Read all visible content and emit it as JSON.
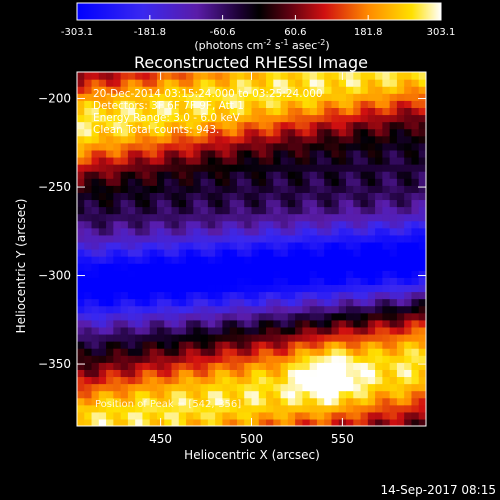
{
  "chart_data": {
    "type": "heatmap",
    "title": "Reconstructed RHESSI Image",
    "xlabel": "Heliocentric X (arcsec)",
    "ylabel": "Heliocentric Y (arcsec)",
    "xlim": [
      404,
      596
    ],
    "ylim": [
      -385,
      -185
    ],
    "x_ticks": [
      450,
      500,
      550
    ],
    "y_ticks": [
      -200,
      -250,
      -300,
      -350
    ],
    "colorbar": {
      "range": [
        -303.1,
        303.1
      ],
      "ticks": [
        "-303.1",
        "-181.8",
        "-60.6",
        "60.6",
        "181.8",
        "303.1"
      ],
      "label_prefix": "(photons cm",
      "label_exp1": "-2",
      "label_mid1": " s",
      "label_exp2": "-1",
      "label_mid2": " asec",
      "label_exp3": "-2",
      "label_suffix": ")"
    },
    "annotations": [
      "20-Dec-2014 03:15:24.000 to 03:25:24.000",
      "Detectors: 3F 6F 7F 9F, Att 1",
      "Energy Range: 3.0 - 6.0 keV",
      "Clean     Total counts: 943."
    ],
    "peak_text": "Position of Peak = [542,-356]",
    "bands": [
      {
        "kind": "bright",
        "center_left": -215,
        "center_right": -180,
        "half_width": 28,
        "peak": 303.1
      },
      {
        "kind": "dark",
        "center_left": -305,
        "center_right": -290,
        "half_width": 22,
        "peak": -303.1
      },
      {
        "kind": "bright",
        "center_left": -385,
        "center_right": -350,
        "half_width": 30,
        "peak": 303.1
      }
    ],
    "peak": {
      "x": 542,
      "y": -356
    }
  },
  "footer_date": "14-Sep-2017 08:15"
}
